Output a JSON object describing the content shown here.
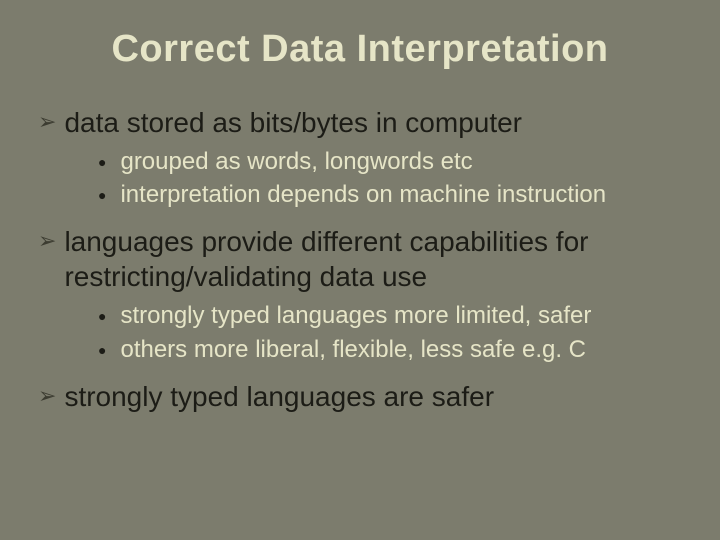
{
  "colors": {
    "background": "#7c7c6d",
    "title": "#e6e5c7",
    "arrow": "#3c3c31",
    "level1_text": "#1c1c16",
    "dot": "#1c1c16",
    "level2_text": "#e6e5c7"
  },
  "typography": {
    "title_fontsize": 38,
    "level1_fontsize": 28,
    "level2_fontsize": 24,
    "font_family": "Arial"
  },
  "title": "Correct Data Interpretation",
  "bullets": [
    {
      "text": "data stored as bits/bytes in computer",
      "sub": [
        "grouped as words, longwords etc",
        "interpretation depends on machine instruction"
      ]
    },
    {
      "text": "languages provide different capabilities for restricting/validating data use",
      "sub": [
        "strongly typed languages more limited, safer",
        "others more liberal, flexible, less safe e.g. C"
      ]
    },
    {
      "text": "strongly typed languages are safer",
      "sub": []
    }
  ],
  "markers": {
    "level1": "➢",
    "level2": "●"
  }
}
